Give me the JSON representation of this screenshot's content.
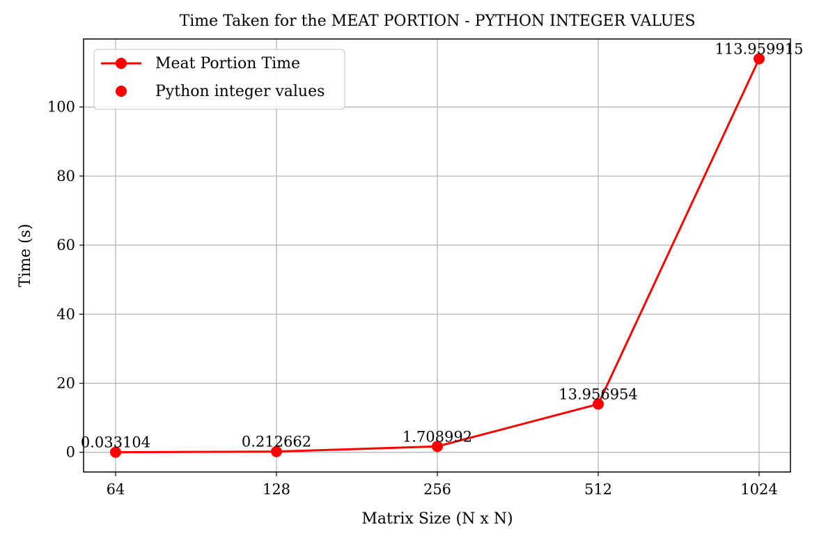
{
  "chart_data": {
    "type": "line",
    "title": "Time Taken for the MEAT PORTION - PYTHON INTEGER VALUES",
    "xlabel": "Matrix Size (N x N)",
    "ylabel": "Time (s)",
    "categories": [
      "64",
      "128",
      "256",
      "512",
      "1024"
    ],
    "series": [
      {
        "name": "Meat Portion Time",
        "values": [
          0.033104,
          0.212662,
          1.708992,
          13.956954,
          113.959915
        ],
        "color": "#ff0000",
        "marker": "circle"
      }
    ],
    "data_labels": [
      "0.033104",
      "0.212662",
      "1.708992",
      "13.956954",
      "113.959915"
    ],
    "legend": {
      "entries": [
        {
          "label": "Meat Portion Time",
          "style": "line-marker",
          "color": "#ff0000"
        },
        {
          "label": "Python integer values",
          "style": "marker",
          "color": "#ff0000"
        }
      ],
      "placement": "top-left"
    },
    "yticks": [
      0,
      20,
      40,
      60,
      80,
      100
    ],
    "ylim": [
      -5.7,
      119.7
    ],
    "grid": true
  }
}
